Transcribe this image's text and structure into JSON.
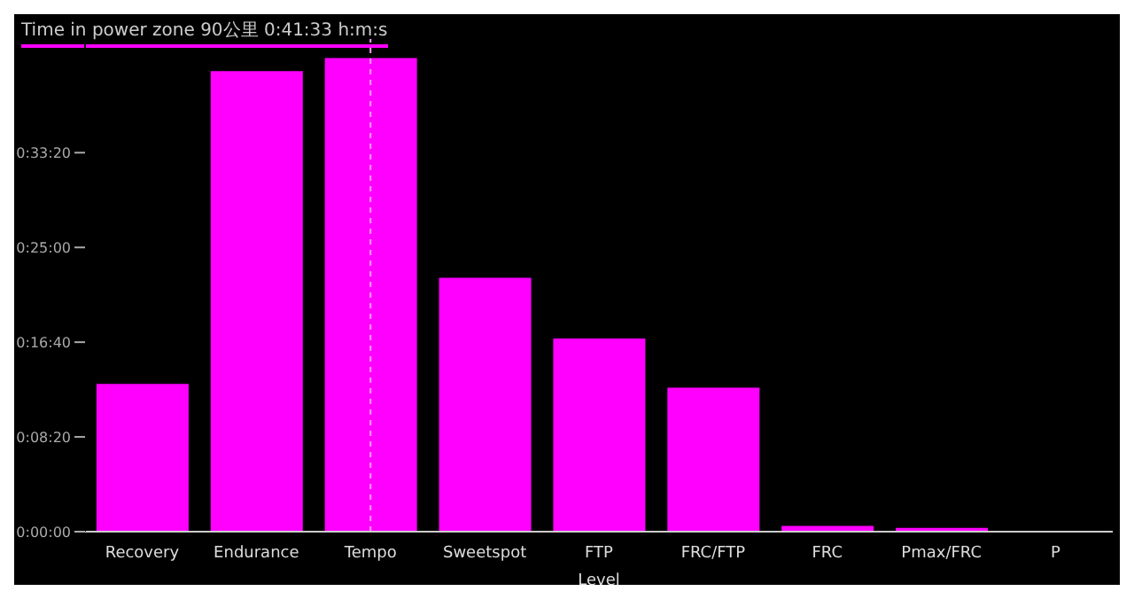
{
  "chart_data": {
    "type": "bar",
    "title": "Time in power zone  90公里  0:41:33 h:m:s",
    "xlabel": "Level",
    "categories": [
      "Recovery",
      "Endurance",
      "Tempo",
      "Sweetspot",
      "FTP",
      "FRC/FTP",
      "FRC",
      "Pmax/FRC",
      "P"
    ],
    "series": [
      {
        "color": "#ff00ff",
        "values": [
          780,
          2430,
          2500,
          1340,
          1020,
          760,
          30,
          20,
          null
        ]
      }
    ],
    "ylim": [
      0,
      2600
    ],
    "yticks": [
      {
        "value": 0,
        "label": "0:00:00"
      },
      {
        "value": 500,
        "label": "0:08:20"
      },
      {
        "value": 1000,
        "label": "0:16:40"
      },
      {
        "value": 1500,
        "label": "0:25:00"
      },
      {
        "value": 2000,
        "label": "0:33:20"
      }
    ],
    "ref_lines": [
      {
        "axis": "x",
        "value": "Tempo",
        "color": "#ff99ff",
        "line_style": "dashed"
      }
    ],
    "grid": false,
    "legend": false
  }
}
